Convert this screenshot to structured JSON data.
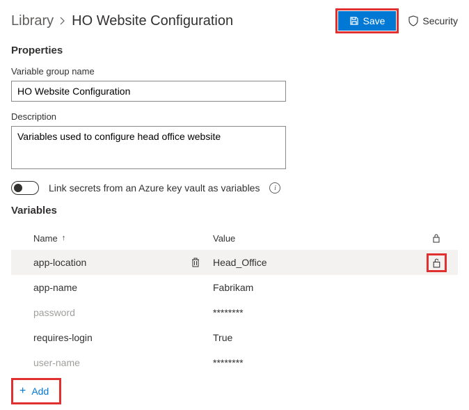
{
  "header": {
    "breadcrumb_root": "Library",
    "breadcrumb_current": "HO Website Configuration",
    "save_label": "Save",
    "security_label": "Security"
  },
  "properties": {
    "section_title": "Properties",
    "name_label": "Variable group name",
    "name_value": "HO Website Configuration",
    "desc_label": "Description",
    "desc_value": "Variables used to configure head office website",
    "keyvault_label": "Link secrets from an Azure key vault as variables",
    "keyvault_enabled": false
  },
  "variables": {
    "section_title": "Variables",
    "col_name": "Name",
    "col_value": "Value",
    "sort_direction": "asc",
    "rows": [
      {
        "name": "app-location",
        "value": "Head_Office",
        "selected": true,
        "is_secret": false,
        "lock_highlighted": true
      },
      {
        "name": "app-name",
        "value": "Fabrikam",
        "selected": false,
        "is_secret": false,
        "lock_highlighted": false
      },
      {
        "name": "password",
        "value": "********",
        "selected": false,
        "is_secret": true,
        "lock_highlighted": false
      },
      {
        "name": "requires-login",
        "value": "True",
        "selected": false,
        "is_secret": false,
        "lock_highlighted": false
      },
      {
        "name": "user-name",
        "value": "********",
        "selected": false,
        "is_secret": true,
        "lock_highlighted": false
      }
    ],
    "add_label": "Add"
  },
  "colors": {
    "primary": "#0078d4",
    "highlight_border": "#e03030",
    "text": "#323130",
    "muted": "#a19f9d",
    "row_selected_bg": "#f3f2f1",
    "border": "#8a8886"
  }
}
